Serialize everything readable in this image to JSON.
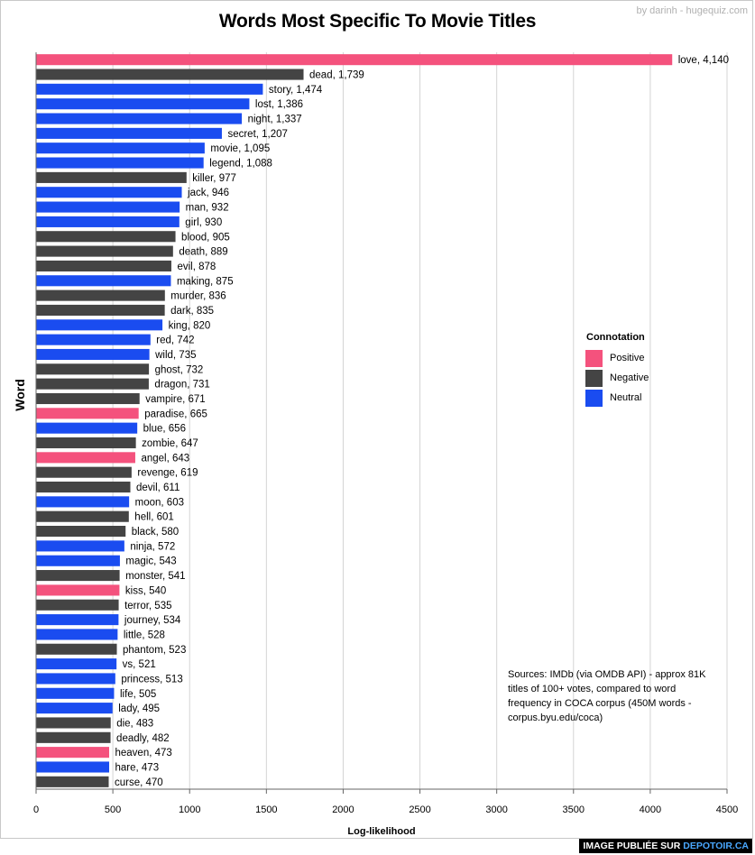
{
  "credit": "by darinh - hugequiz.com",
  "banner": {
    "prefix": "IMAGE PUBLIÉE SUR",
    "site": "DEPOTOIR.CA"
  },
  "sources": "Sources:  IMDb (via OMDB API) - approx 81K titles of 100+ votes, compared to word frequency in COCA corpus (450M words - corpus.byu.edu/coca)",
  "colors": {
    "Positive": "#f4527d",
    "Negative": "#444444",
    "Neutral": "#1a4cf0"
  },
  "chart_data": {
    "type": "bar",
    "orientation": "horizontal",
    "title": "Words Most Specific To Movie Titles",
    "xlabel": "Log-likelihood",
    "ylabel": "Word",
    "xlim": [
      0,
      4500
    ],
    "xticks": [
      0,
      500,
      1000,
      1500,
      2000,
      2500,
      3000,
      3500,
      4000,
      4500
    ],
    "grid": "vertical",
    "legend": {
      "title": "Connotation",
      "placement": "right",
      "entries": [
        "Positive",
        "Negative",
        "Neutral"
      ]
    },
    "bars": [
      {
        "word": "love",
        "value": 4140,
        "label": "4,140",
        "connotation": "Positive"
      },
      {
        "word": "dead",
        "value": 1739,
        "label": "1,739",
        "connotation": "Negative"
      },
      {
        "word": "story",
        "value": 1474,
        "label": "1,474",
        "connotation": "Neutral"
      },
      {
        "word": "lost",
        "value": 1386,
        "label": "1,386",
        "connotation": "Neutral"
      },
      {
        "word": "night",
        "value": 1337,
        "label": "1,337",
        "connotation": "Neutral"
      },
      {
        "word": "secret",
        "value": 1207,
        "label": "1,207",
        "connotation": "Neutral"
      },
      {
        "word": "movie",
        "value": 1095,
        "label": "1,095",
        "connotation": "Neutral"
      },
      {
        "word": "legend",
        "value": 1088,
        "label": "1,088",
        "connotation": "Neutral"
      },
      {
        "word": "killer",
        "value": 977,
        "label": "977",
        "connotation": "Negative"
      },
      {
        "word": "jack",
        "value": 946,
        "label": "946",
        "connotation": "Neutral"
      },
      {
        "word": "man",
        "value": 932,
        "label": "932",
        "connotation": "Neutral"
      },
      {
        "word": "girl",
        "value": 930,
        "label": "930",
        "connotation": "Neutral"
      },
      {
        "word": "blood",
        "value": 905,
        "label": "905",
        "connotation": "Negative"
      },
      {
        "word": "death",
        "value": 889,
        "label": "889",
        "connotation": "Negative"
      },
      {
        "word": "evil",
        "value": 878,
        "label": "878",
        "connotation": "Negative"
      },
      {
        "word": "making",
        "value": 875,
        "label": "875",
        "connotation": "Neutral"
      },
      {
        "word": "murder",
        "value": 836,
        "label": "836",
        "connotation": "Negative"
      },
      {
        "word": "dark",
        "value": 835,
        "label": "835",
        "connotation": "Negative"
      },
      {
        "word": "king",
        "value": 820,
        "label": "820",
        "connotation": "Neutral"
      },
      {
        "word": "red",
        "value": 742,
        "label": "742",
        "connotation": "Neutral"
      },
      {
        "word": "wild",
        "value": 735,
        "label": "735",
        "connotation": "Neutral"
      },
      {
        "word": "ghost",
        "value": 732,
        "label": "732",
        "connotation": "Negative"
      },
      {
        "word": "dragon",
        "value": 731,
        "label": "731",
        "connotation": "Negative"
      },
      {
        "word": "vampire",
        "value": 671,
        "label": "671",
        "connotation": "Negative"
      },
      {
        "word": "paradise",
        "value": 665,
        "label": "665",
        "connotation": "Positive"
      },
      {
        "word": "blue",
        "value": 656,
        "label": "656",
        "connotation": "Neutral"
      },
      {
        "word": "zombie",
        "value": 647,
        "label": "647",
        "connotation": "Negative"
      },
      {
        "word": "angel",
        "value": 643,
        "label": "643",
        "connotation": "Positive"
      },
      {
        "word": "revenge",
        "value": 619,
        "label": "619",
        "connotation": "Negative"
      },
      {
        "word": "devil",
        "value": 611,
        "label": "611",
        "connotation": "Negative"
      },
      {
        "word": "moon",
        "value": 603,
        "label": "603",
        "connotation": "Neutral"
      },
      {
        "word": "hell",
        "value": 601,
        "label": "601",
        "connotation": "Negative"
      },
      {
        "word": "black",
        "value": 580,
        "label": "580",
        "connotation": "Negative"
      },
      {
        "word": "ninja",
        "value": 572,
        "label": "572",
        "connotation": "Neutral"
      },
      {
        "word": "magic",
        "value": 543,
        "label": "543",
        "connotation": "Neutral"
      },
      {
        "word": "monster",
        "value": 541,
        "label": "541",
        "connotation": "Negative"
      },
      {
        "word": "kiss",
        "value": 540,
        "label": "540",
        "connotation": "Positive"
      },
      {
        "word": "terror",
        "value": 535,
        "label": "535",
        "connotation": "Negative"
      },
      {
        "word": "journey",
        "value": 534,
        "label": "534",
        "connotation": "Neutral"
      },
      {
        "word": "little",
        "value": 528,
        "label": "528",
        "connotation": "Neutral"
      },
      {
        "word": "phantom",
        "value": 523,
        "label": "523",
        "connotation": "Negative"
      },
      {
        "word": "vs",
        "value": 521,
        "label": "521",
        "connotation": "Neutral"
      },
      {
        "word": "princess",
        "value": 513,
        "label": "513",
        "connotation": "Neutral"
      },
      {
        "word": "life",
        "value": 505,
        "label": "505",
        "connotation": "Neutral"
      },
      {
        "word": "lady",
        "value": 495,
        "label": "495",
        "connotation": "Neutral"
      },
      {
        "word": "die",
        "value": 483,
        "label": "483",
        "connotation": "Negative"
      },
      {
        "word": "deadly",
        "value": 482,
        "label": "482",
        "connotation": "Negative"
      },
      {
        "word": "heaven",
        "value": 473,
        "label": "473",
        "connotation": "Positive"
      },
      {
        "word": "hare",
        "value": 473,
        "label": "473",
        "connotation": "Neutral"
      },
      {
        "word": "curse",
        "value": 470,
        "label": "470",
        "connotation": "Negative"
      }
    ]
  }
}
